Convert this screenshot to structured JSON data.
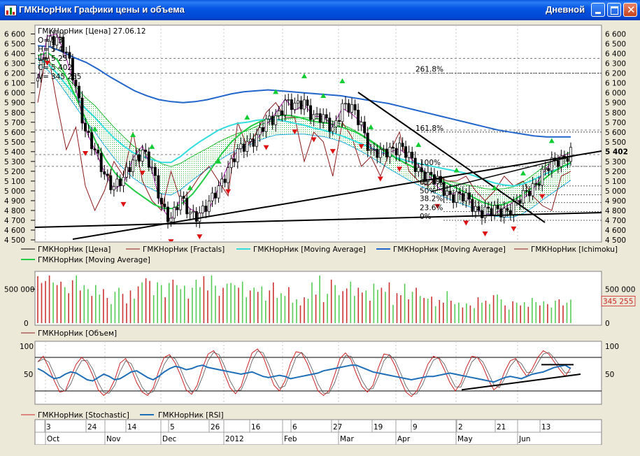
{
  "window": {
    "title": "ГМКНорНик Графики цены и объема",
    "period": "Дневной",
    "buttons": [
      "minimize",
      "maximize",
      "close"
    ]
  },
  "colors": {
    "price": "#000000",
    "fractals_up": "#11cc33",
    "fractals_down": "#dd1111",
    "ma_light": "#33dddd",
    "ma_dark": "#2266cc",
    "ma_green": "#22cc44",
    "ichimoku": "#8b1a1a",
    "stochastic": "#cc2222",
    "rsi": "#1f6fb8",
    "volume_up": "#55cc55",
    "volume_down": "#cc3333"
  },
  "chart_data": [
    {
      "type": "candlestick",
      "name": "price",
      "info": {
        "symbol_line": "ГМКНорНик [Цена] 27.06.12",
        "o_label": "O=",
        "o_value": "5 3",
        "h_label": "H=",
        "h_value": "5 4",
        "l_label": "L=",
        "l_value": "5 25",
        "c_label": "C=",
        "c_value": "5 402",
        "v_label": "V=",
        "v_value": "345 255"
      },
      "yticks": [
        "6 600",
        "6 500",
        "6 400",
        "6 300",
        "6 200",
        "6 100",
        "6 000",
        "5 900",
        "5 800",
        "5 700",
        "5 600",
        "5 500",
        "5 400",
        "5 300",
        "5 200",
        "5 100",
        "5 000",
        "4 900",
        "4 800",
        "4 700",
        "4 600",
        "4 500"
      ],
      "right_ticks": [
        "6 600",
        "6 500",
        "6 400",
        "6 300",
        "6 200",
        "6 100",
        "6 000",
        "5 900",
        "5 800",
        "5 700",
        "5 600",
        "5 500",
        "5 402",
        "5 300",
        "5 200",
        "5 100",
        "5 000",
        "4 900",
        "4 800",
        "4 700",
        "4 600",
        "4 500"
      ],
      "ylim": [
        4500,
        6640
      ],
      "last_price": 5402,
      "fib_levels": [
        {
          "label": "261.8%",
          "value": 6200
        },
        {
          "label": "161.8%",
          "value": 5600
        },
        {
          "label": "100%",
          "value": 5250
        },
        {
          "label": "61.8%",
          "value": 5050
        },
        {
          "label": "50%",
          "value": 4960
        },
        {
          "label": "38.2%",
          "value": 4880
        },
        {
          "label": "23.6%",
          "value": 4790
        },
        {
          "label": "0%",
          "value": 4700
        }
      ],
      "series": [
        {
          "name": "ГМКНорНик [Цена]",
          "color": "#000000"
        },
        {
          "name": "ГМКНорНик [Fractals]",
          "color": "#8b1a1a"
        },
        {
          "name": "ГМКНорНик [Moving Average]",
          "color": "#33dddd"
        },
        {
          "name": "ГМКНорНик [Moving Average]",
          "color": "#2266cc"
        },
        {
          "name": "ГМКНорНик [Ichimoku]",
          "color": "#8b1a1a"
        },
        {
          "name": "ГМКНорНик [Moving Average]",
          "color": "#22cc44"
        }
      ],
      "close": [
        6120,
        6540,
        6580,
        6380,
        6080,
        5620,
        5380,
        5180,
        5050,
        5100,
        5320,
        5420,
        5200,
        4870,
        4720,
        4900,
        4780,
        4770,
        4850,
        5050,
        5230,
        5380,
        5500,
        5560,
        5680,
        5760,
        5910,
        5840,
        5920,
        5760,
        5720,
        5640,
        5870,
        5820,
        5690,
        5400,
        5360,
        5430,
        5460,
        5330,
        5220,
        5160,
        5080,
        4980,
        4960,
        4910,
        4820,
        4800,
        4780,
        4800,
        4850,
        4930,
        5050,
        5180,
        5260,
        5330,
        5402
      ],
      "ma_light": [
        6350,
        6300,
        6200,
        6080,
        5960,
        5840,
        5750,
        5640,
        5540,
        5460,
        5390,
        5350,
        5320,
        5290,
        5290,
        5350,
        5430,
        5500,
        5560,
        5620,
        5660,
        5690,
        5700,
        5720,
        5730,
        5730,
        5710,
        5690,
        5670,
        5640,
        5620,
        5590,
        5560,
        5520,
        5480,
        5440,
        5400,
        5360,
        5330,
        5300,
        5280,
        5260,
        5240,
        5220,
        5200,
        5180,
        5150,
        5110,
        5080,
        5060,
        5050,
        5070,
        5110,
        5160,
        5200,
        5240,
        5280
      ],
      "ma_dark": [
        6480,
        6470,
        6420,
        6360,
        6310,
        6240,
        6160,
        6090,
        6020,
        5970,
        5930,
        5910,
        5900,
        5910,
        5930,
        5960,
        5990,
        6010,
        6020,
        6030,
        6020,
        6010,
        6000,
        5990,
        5980,
        5970,
        5950,
        5930,
        5910,
        5890,
        5860,
        5830,
        5800,
        5770,
        5740,
        5710,
        5680,
        5650,
        5620,
        5600,
        5580,
        5560,
        5550,
        5550,
        5550
      ],
      "ma_green": [
        6380,
        6410,
        6340,
        6150,
        5940,
        5720,
        5500,
        5320,
        5180,
        5080,
        5000,
        4930,
        4860,
        4820,
        4820,
        4880,
        4970,
        5100,
        5240,
        5380,
        5500,
        5590,
        5660,
        5710,
        5740,
        5770,
        5770,
        5750,
        5720,
        5700,
        5690,
        5660,
        5630,
        5590,
        5530,
        5460,
        5390,
        5330,
        5280,
        5230,
        5190,
        5140,
        5090,
        5040,
        4990,
        4930,
        4880,
        4850,
        4860,
        4900,
        4960,
        5030,
        5100,
        5180,
        5240,
        5290
      ],
      "ichimoku": [
        5900,
        6450,
        5900,
        5420,
        5650,
        5050,
        4800,
        5000,
        5300,
        5150,
        5600,
        5100,
        4900,
        4800,
        5200,
        4900,
        5000,
        5150,
        5250,
        5100,
        4950,
        5700,
        5450,
        5600,
        5800,
        5900,
        5750,
        5750,
        5300,
        5600,
        5500,
        5150,
        5700,
        5550,
        5250,
        5350,
        5150,
        5400,
        5600,
        5200,
        5100,
        5050,
        5150,
        5100,
        5100,
        5150,
        5000,
        4900,
        5000,
        5150,
        5050,
        5100,
        4950,
        4850,
        4800,
        5150,
        5200
      ]
    },
    {
      "type": "bar",
      "name": "volume",
      "yticks": [
        "500 000",
        "0"
      ],
      "right_ticks": [
        "500 000",
        "345 255",
        "0"
      ],
      "ylim": [
        0,
        720000
      ],
      "last_value": 345255,
      "series": [
        {
          "name": "ГМКНорНик [Объем]"
        }
      ],
      "values": [
        690000,
        590000,
        620000,
        700000,
        600000,
        560000,
        610000,
        530000,
        440000,
        630000,
        700000,
        480000,
        560000,
        500000,
        400000,
        560000,
        420000,
        500000,
        370000,
        280000,
        460000,
        520000,
        430000,
        290000,
        480000,
        360000,
        540000,
        600000,
        660000,
        620000,
        410000,
        600000,
        560000,
        380000,
        590000,
        640000,
        560000,
        500000,
        550000,
        360000,
        520000,
        640000,
        530000,
        690000,
        480000,
        700000,
        550000,
        400000,
        520000,
        580000,
        590000,
        560000,
        520000,
        610000,
        380000,
        480000,
        520000,
        460000,
        540000,
        330000,
        480000,
        600000,
        370000,
        440000,
        400000,
        530000,
        300000,
        350000,
        260000,
        380000,
        360000,
        600000,
        420000,
        700000,
        310000,
        430000,
        640000,
        560000,
        410000,
        470000,
        510000,
        610000,
        400000,
        520000,
        450000,
        480000,
        330000,
        580000,
        490000,
        520000,
        460000,
        600000,
        270000,
        440000,
        410000,
        580000,
        350000,
        460000,
        520000,
        400000,
        370000,
        360000,
        390000,
        250000,
        340000,
        300000,
        470000,
        330000,
        280000,
        300000,
        230000,
        290000,
        260000,
        220000,
        380000,
        300000,
        330000,
        280000,
        410000,
        420000,
        350000,
        260000,
        200000,
        320000,
        300000,
        260000,
        310000,
        240000,
        370000,
        310000,
        260000,
        320000,
        280000,
        230000,
        330000,
        350000,
        260000,
        300000,
        345255
      ],
      "up": [
        false,
        false,
        false,
        false,
        true,
        false,
        false,
        true,
        false,
        false,
        true,
        false,
        true,
        true,
        false,
        true,
        true,
        false,
        false,
        true,
        true,
        true,
        false,
        false,
        false,
        true,
        false,
        true,
        false,
        false,
        true,
        true,
        true,
        false,
        true,
        false,
        true,
        true,
        true,
        false,
        true,
        true,
        true,
        false,
        false,
        true,
        true,
        false,
        false,
        true,
        true,
        true,
        false,
        true,
        true,
        false,
        true,
        false,
        true,
        true,
        false,
        false,
        true,
        true,
        true,
        false,
        true,
        true,
        false,
        false,
        true,
        true,
        false,
        true,
        false,
        true,
        false,
        true,
        true,
        false,
        false,
        true,
        true,
        false,
        false,
        true,
        false,
        true,
        true,
        false,
        true,
        false,
        true,
        false,
        false,
        true,
        false,
        true,
        false,
        true,
        false,
        true,
        false,
        true,
        false,
        false,
        true,
        false,
        true,
        true,
        false,
        true,
        false,
        true,
        false,
        true,
        false,
        true,
        false,
        true,
        true,
        false,
        true,
        false,
        true,
        false,
        true,
        false,
        true,
        true,
        false,
        true,
        false,
        true,
        true,
        false,
        false,
        true,
        true
      ]
    },
    {
      "type": "line",
      "name": "oscillators",
      "yticks": [
        "100",
        "50"
      ],
      "right_ticks": [
        "100",
        "50"
      ],
      "ylim": [
        0,
        100
      ],
      "levels": [
        80,
        20
      ],
      "series": [
        {
          "name": "ГМКНорНик [Stochastic]",
          "color": "#cc2222"
        },
        {
          "name": "ГМКНорНик [RSI]",
          "color": "#1f6fb8"
        }
      ],
      "stochastic": [
        72,
        82,
        62,
        38,
        18,
        20,
        45,
        68,
        80,
        70,
        48,
        22,
        12,
        20,
        40,
        70,
        78,
        60,
        35,
        18,
        12,
        25,
        55,
        80,
        85,
        70,
        48,
        22,
        14,
        30,
        62,
        86,
        92,
        78,
        50,
        26,
        15,
        28,
        60,
        88,
        95,
        82,
        55,
        30,
        20,
        38,
        70,
        90,
        88,
        70,
        45,
        20,
        12,
        20,
        48,
        78,
        88,
        76,
        50,
        28,
        18,
        30,
        62,
        86,
        84,
        66,
        40,
        18,
        10,
        20,
        42,
        68,
        82,
        78,
        58,
        35,
        20,
        34,
        62,
        82,
        80,
        64,
        40,
        22,
        30,
        55,
        74,
        78,
        60,
        46,
        60,
        80,
        92,
        86,
        72,
        58,
        46,
        62
      ],
      "rsi": [
        60,
        55,
        48,
        42,
        44,
        50,
        54,
        52,
        46,
        40,
        38,
        44,
        50,
        46,
        40,
        42,
        48,
        54,
        56,
        50,
        44,
        40,
        46,
        54,
        60,
        64,
        62,
        58,
        60,
        64,
        66,
        62,
        60,
        58,
        56,
        54,
        52,
        50,
        52,
        54,
        50,
        46,
        44,
        46,
        48,
        46,
        42,
        44,
        46,
        48,
        50,
        52,
        56,
        58,
        60,
        62,
        64,
        66,
        66,
        62,
        58,
        54,
        52,
        50,
        48,
        46,
        44,
        42,
        40,
        42,
        44,
        46,
        46,
        48,
        50,
        52,
        50,
        48,
        46,
        44,
        42,
        40,
        38,
        36,
        40,
        44,
        46,
        44,
        42,
        46,
        50,
        52,
        54,
        58,
        62,
        64,
        66,
        60
      ]
    }
  ],
  "time_axis": {
    "days": [
      "3",
      "24",
      "14",
      "5",
      "26",
      "16",
      "6",
      "27",
      "19",
      "9",
      "2",
      "21",
      "13"
    ],
    "months": [
      "Oct",
      "Nov",
      "Dec",
      "2012",
      "Feb",
      "Mar",
      "Apr",
      "May",
      "Jun"
    ]
  }
}
